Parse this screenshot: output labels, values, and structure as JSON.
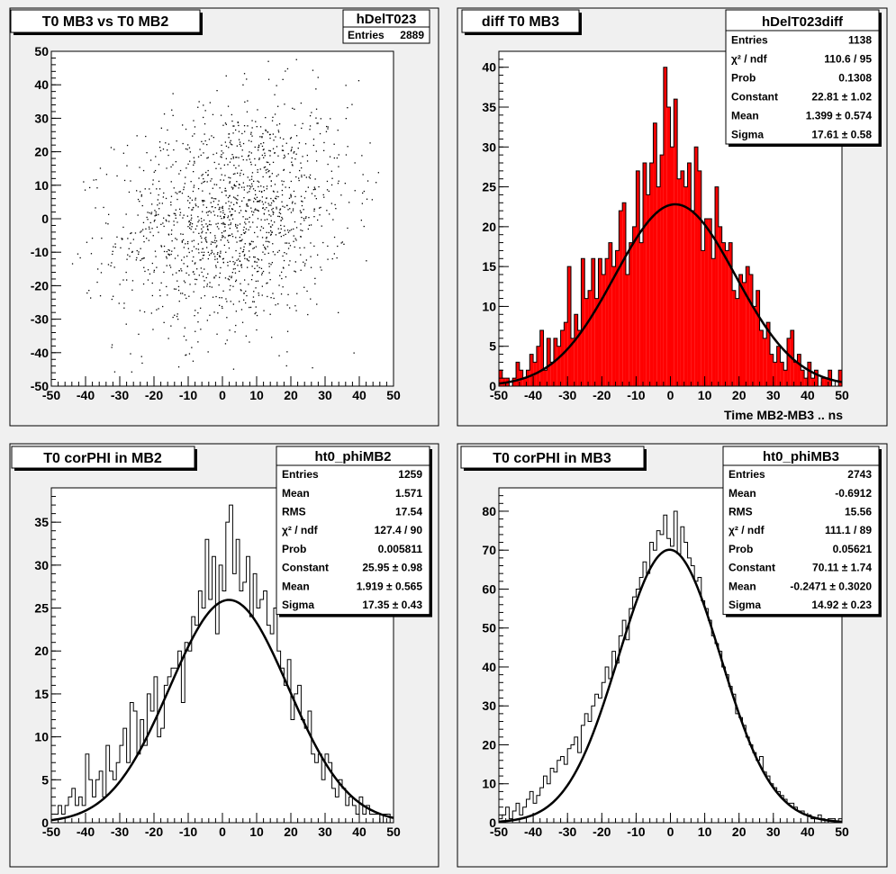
{
  "chart_data": [
    {
      "type": "scatter",
      "title": "T0 MB3 vs T0 MB2",
      "stats": {
        "name": "hDelT023",
        "rows": [
          {
            "label": "Entries",
            "value": "2889"
          }
        ]
      },
      "xlim": [
        -50,
        50
      ],
      "ylim": [
        -50,
        50
      ],
      "xlabel": "",
      "ylabel": "",
      "x_ticks": [
        -50,
        -40,
        -30,
        -20,
        -10,
        0,
        10,
        20,
        30,
        40,
        50
      ],
      "y_ticks": [
        -50,
        -40,
        -30,
        -20,
        -10,
        0,
        10,
        20,
        30,
        40,
        50
      ],
      "points_shown": 1500,
      "distribution": {
        "mean_x": 3,
        "mean_y": 1,
        "sigma_x": 17,
        "sigma_y": 17,
        "correlation": 0.2
      },
      "color": "#000000"
    },
    {
      "type": "bar",
      "title": "diff T0 MB3",
      "stats": {
        "name": "hDelT023diff",
        "rows": [
          {
            "label": "Entries",
            "value": "1138"
          },
          {
            "label": "χ² / ndf",
            "value": "110.6 / 95"
          },
          {
            "label": "Prob",
            "value": "0.1308"
          },
          {
            "label": "Constant",
            "value": "22.81 ± 1.02"
          },
          {
            "label": "Mean",
            "value": "1.399 ± 0.574"
          },
          {
            "label": "Sigma",
            "value": "17.61 ± 0.58"
          }
        ]
      },
      "xlim": [
        -50,
        50
      ],
      "ylim": [
        0,
        42
      ],
      "xlabel": "Time MB2-MB3  ..  ns",
      "ylabel": "",
      "x_ticks": [
        -50,
        -40,
        -30,
        -20,
        -10,
        0,
        10,
        20,
        30,
        40,
        50
      ],
      "y_ticks": [
        0,
        5,
        10,
        15,
        20,
        25,
        30,
        35,
        40
      ],
      "bin_edges_start": -50,
      "bin_width": 1,
      "values": [
        2,
        1,
        1,
        0,
        1,
        3,
        2,
        1,
        2,
        4,
        3,
        5,
        7,
        2,
        6,
        3,
        6,
        5,
        7,
        8,
        15,
        6,
        9,
        7,
        16,
        11,
        12,
        16,
        11,
        16,
        14,
        16,
        18,
        15,
        17,
        22,
        23,
        14,
        18,
        20,
        27,
        18,
        28,
        24,
        28,
        33,
        25,
        29,
        40,
        35,
        30,
        36,
        26,
        27,
        25,
        28,
        22,
        30,
        27,
        17,
        21,
        21,
        16,
        25,
        20,
        18,
        17,
        18,
        12,
        11,
        14,
        13,
        15,
        14,
        10,
        12,
        7,
        6,
        8,
        4,
        3,
        5,
        3,
        2,
        6,
        7,
        3,
        4,
        2,
        1,
        3,
        1,
        2,
        0,
        1,
        1,
        2,
        0,
        0,
        2
      ],
      "fit": {
        "function": "gaus",
        "constant": 22.81,
        "mean": 1.399,
        "sigma": 17.61
      },
      "fill_color": "#ff0000"
    },
    {
      "type": "bar",
      "title": "T0 corPHI in MB2",
      "stats": {
        "name": "ht0_phiMB2",
        "rows": [
          {
            "label": "Entries",
            "value": "1259"
          },
          {
            "label": "Mean",
            "value": "1.571"
          },
          {
            "label": "RMS",
            "value": "17.54"
          },
          {
            "label": "χ² / ndf",
            "value": "127.4 / 90"
          },
          {
            "label": "Prob",
            "value": "0.005811"
          },
          {
            "label": "Constant",
            "value": "25.95 ± 0.98"
          },
          {
            "label": "Mean",
            "value": "1.919 ± 0.565"
          },
          {
            "label": "Sigma",
            "value": "17.35 ± 0.43"
          }
        ]
      },
      "xlim": [
        -50,
        50
      ],
      "ylim": [
        0,
        39
      ],
      "xlabel": "",
      "ylabel": "",
      "x_ticks": [
        -50,
        -40,
        -30,
        -20,
        -10,
        0,
        10,
        20,
        30,
        40,
        50
      ],
      "y_ticks": [
        0,
        5,
        10,
        15,
        20,
        25,
        30,
        35
      ],
      "bin_edges_start": -50,
      "bin_width": 1,
      "values": [
        1,
        1,
        2,
        1,
        2,
        3,
        4,
        2,
        3,
        2,
        8,
        5,
        3,
        5,
        6,
        3,
        9,
        6,
        5,
        7,
        9,
        11,
        7,
        14,
        13,
        8,
        12,
        9,
        15,
        13,
        17,
        10,
        11,
        16,
        17,
        18,
        18,
        20,
        14,
        21,
        20,
        24,
        23,
        27,
        25,
        33,
        26,
        31,
        22,
        30,
        27,
        35,
        37,
        29,
        33,
        27,
        28,
        31,
        24,
        29,
        25,
        26,
        27,
        23,
        22,
        25,
        20,
        18,
        16,
        19,
        12,
        15,
        16,
        12,
        11,
        13,
        8,
        7,
        8,
        5,
        8,
        7,
        4,
        3,
        5,
        4,
        2,
        3,
        2,
        1,
        3,
        1,
        2,
        1,
        1,
        1,
        0,
        1,
        1,
        0
      ],
      "fit": {
        "function": "gaus",
        "constant": 25.95,
        "mean": 1.919,
        "sigma": 17.35
      },
      "fill_color": "#ffffff"
    },
    {
      "type": "bar",
      "title": "T0 corPHI in MB3",
      "stats": {
        "name": "ht0_phiMB3",
        "rows": [
          {
            "label": "Entries",
            "value": "2743"
          },
          {
            "label": "Mean",
            "value": "-0.6912"
          },
          {
            "label": "RMS",
            "value": "15.56"
          },
          {
            "label": "χ² / ndf",
            "value": "111.1 / 89"
          },
          {
            "label": "Prob",
            "value": "0.05621"
          },
          {
            "label": "Constant",
            "value": "70.11 ± 1.74"
          },
          {
            "label": "Mean",
            "value": "-0.2471 ± 0.3020"
          },
          {
            "label": "Sigma",
            "value": "14.92 ± 0.23"
          }
        ]
      },
      "xlim": [
        -50,
        50
      ],
      "ylim": [
        0,
        86
      ],
      "xlabel": "",
      "ylabel": "",
      "x_ticks": [
        -50,
        -40,
        -30,
        -20,
        -10,
        0,
        10,
        20,
        30,
        40,
        50
      ],
      "y_ticks": [
        0,
        10,
        20,
        30,
        40,
        50,
        60,
        70,
        80
      ],
      "bin_edges_start": -50,
      "bin_width": 1,
      "values": [
        1,
        2,
        4,
        1,
        3,
        5,
        2,
        4,
        6,
        8,
        5,
        7,
        9,
        12,
        10,
        14,
        13,
        16,
        17,
        15,
        19,
        20,
        22,
        18,
        25,
        28,
        26,
        30,
        33,
        32,
        36,
        40,
        37,
        44,
        41,
        48,
        52,
        47,
        55,
        58,
        60,
        63,
        67,
        64,
        72,
        70,
        75,
        74,
        79,
        73,
        71,
        80,
        69,
        76,
        72,
        68,
        66,
        62,
        63,
        57,
        55,
        52,
        48,
        46,
        44,
        40,
        38,
        35,
        33,
        28,
        27,
        25,
        22,
        20,
        18,
        16,
        17,
        13,
        12,
        10,
        9,
        8,
        7,
        6,
        5,
        5,
        4,
        3,
        3,
        2,
        2,
        1,
        1,
        2,
        1,
        0,
        1,
        1,
        0,
        1
      ],
      "fit": {
        "function": "gaus",
        "constant": 70.11,
        "mean": -0.2471,
        "sigma": 14.92
      },
      "fill_color": "#ffffff"
    }
  ]
}
